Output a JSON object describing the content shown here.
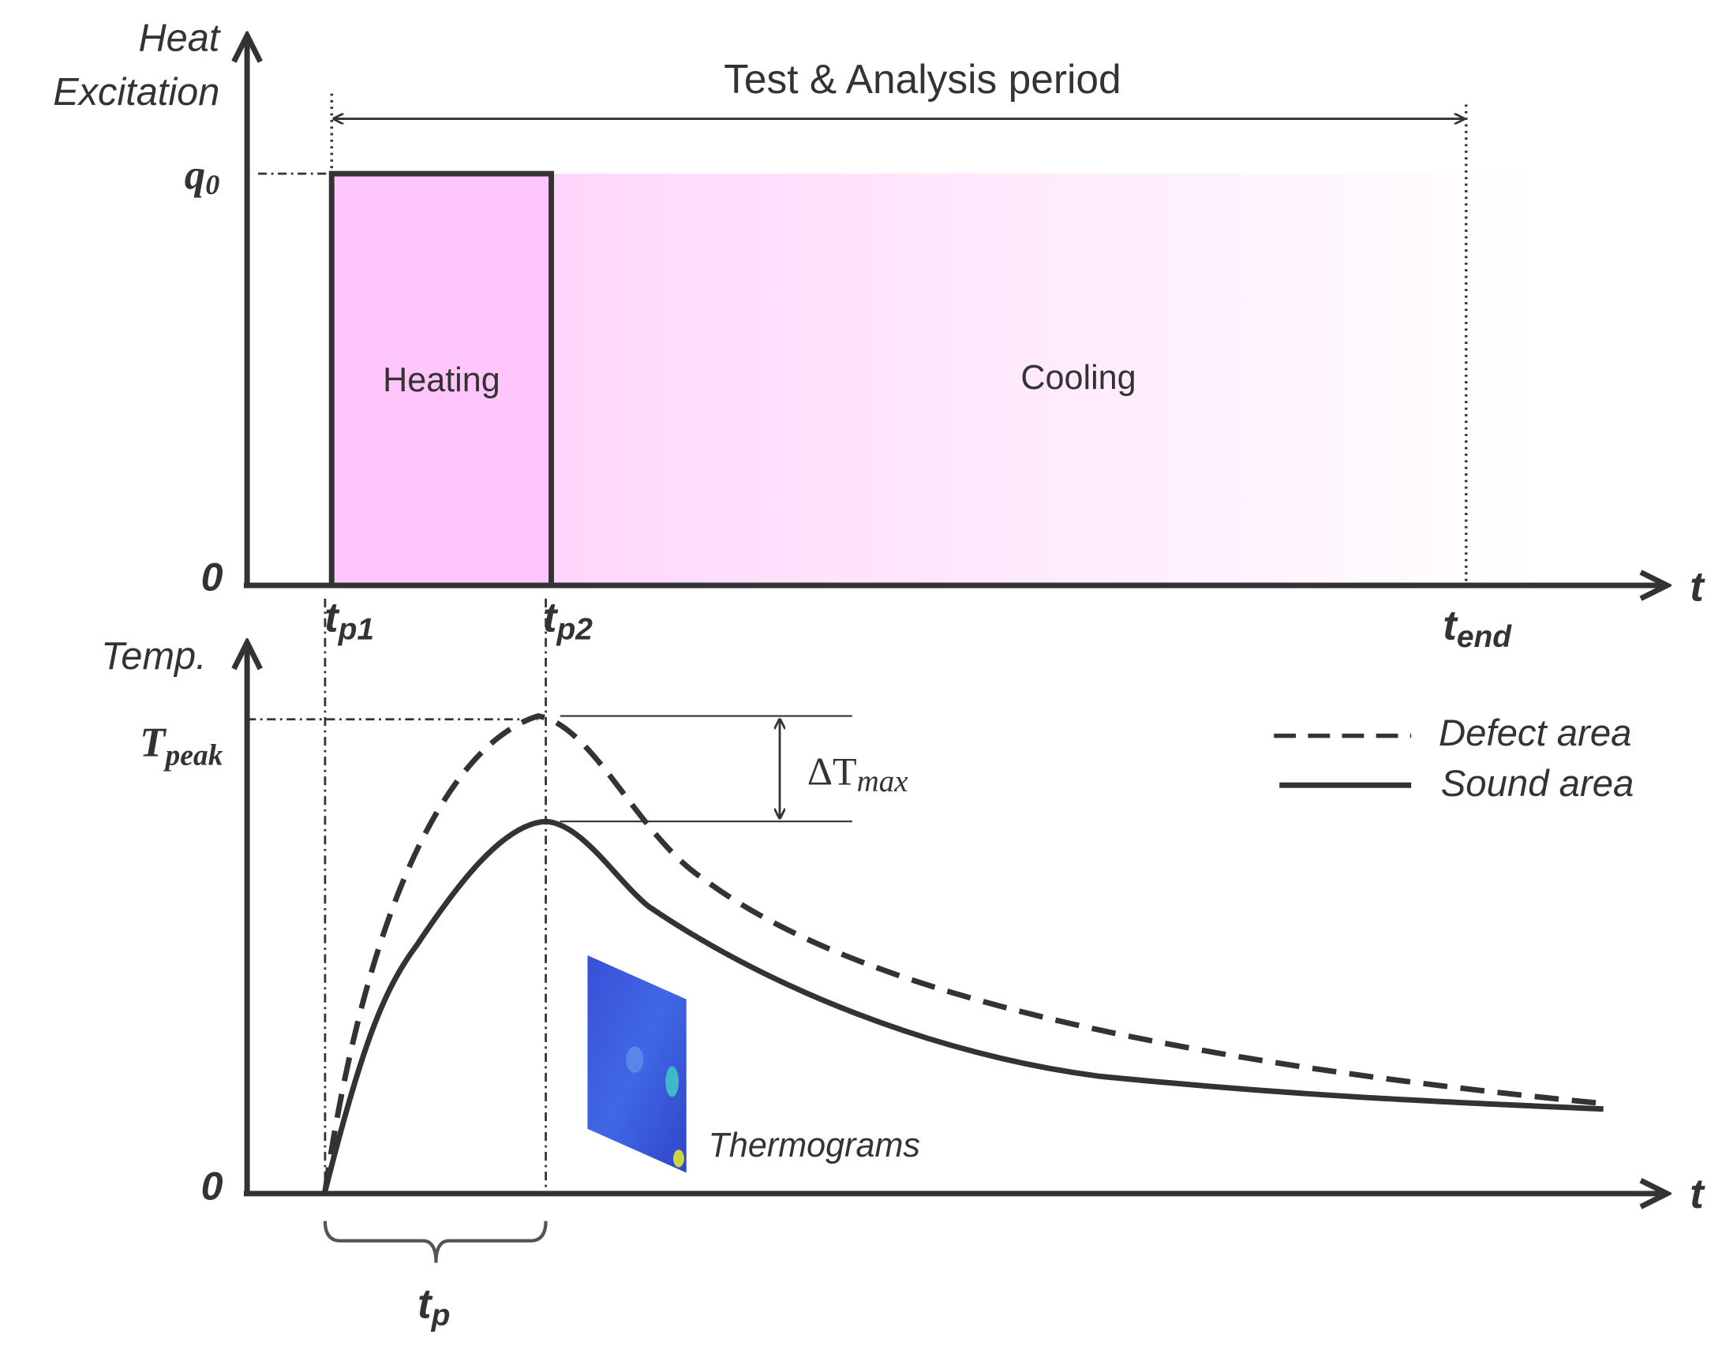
{
  "top_panel": {
    "y_label": [
      "Heat",
      "Excitation"
    ],
    "y_ticks": [
      {
        "base": "q",
        "sub": "0"
      },
      "0"
    ],
    "x_axis_label": "t",
    "period_label": "Test & Analysis period",
    "regions": [
      "Heating",
      "Cooling"
    ],
    "x_ticks": [
      {
        "base": "t",
        "sub": "p1"
      },
      {
        "base": "t",
        "sub": "p2"
      },
      {
        "base": "t",
        "sub": "end"
      }
    ]
  },
  "bottom_panel": {
    "y_label": "Temp.",
    "y_ticks": [
      {
        "base": "T",
        "sub": "peak"
      },
      "0"
    ],
    "x_axis_label": "t",
    "delta_label": {
      "base": "ΔT",
      "sub": "max"
    },
    "legend": [
      "Defect area",
      "Sound area"
    ],
    "image_label": "Thermograms",
    "duration_label": {
      "base": "t",
      "sub": "p"
    }
  }
}
